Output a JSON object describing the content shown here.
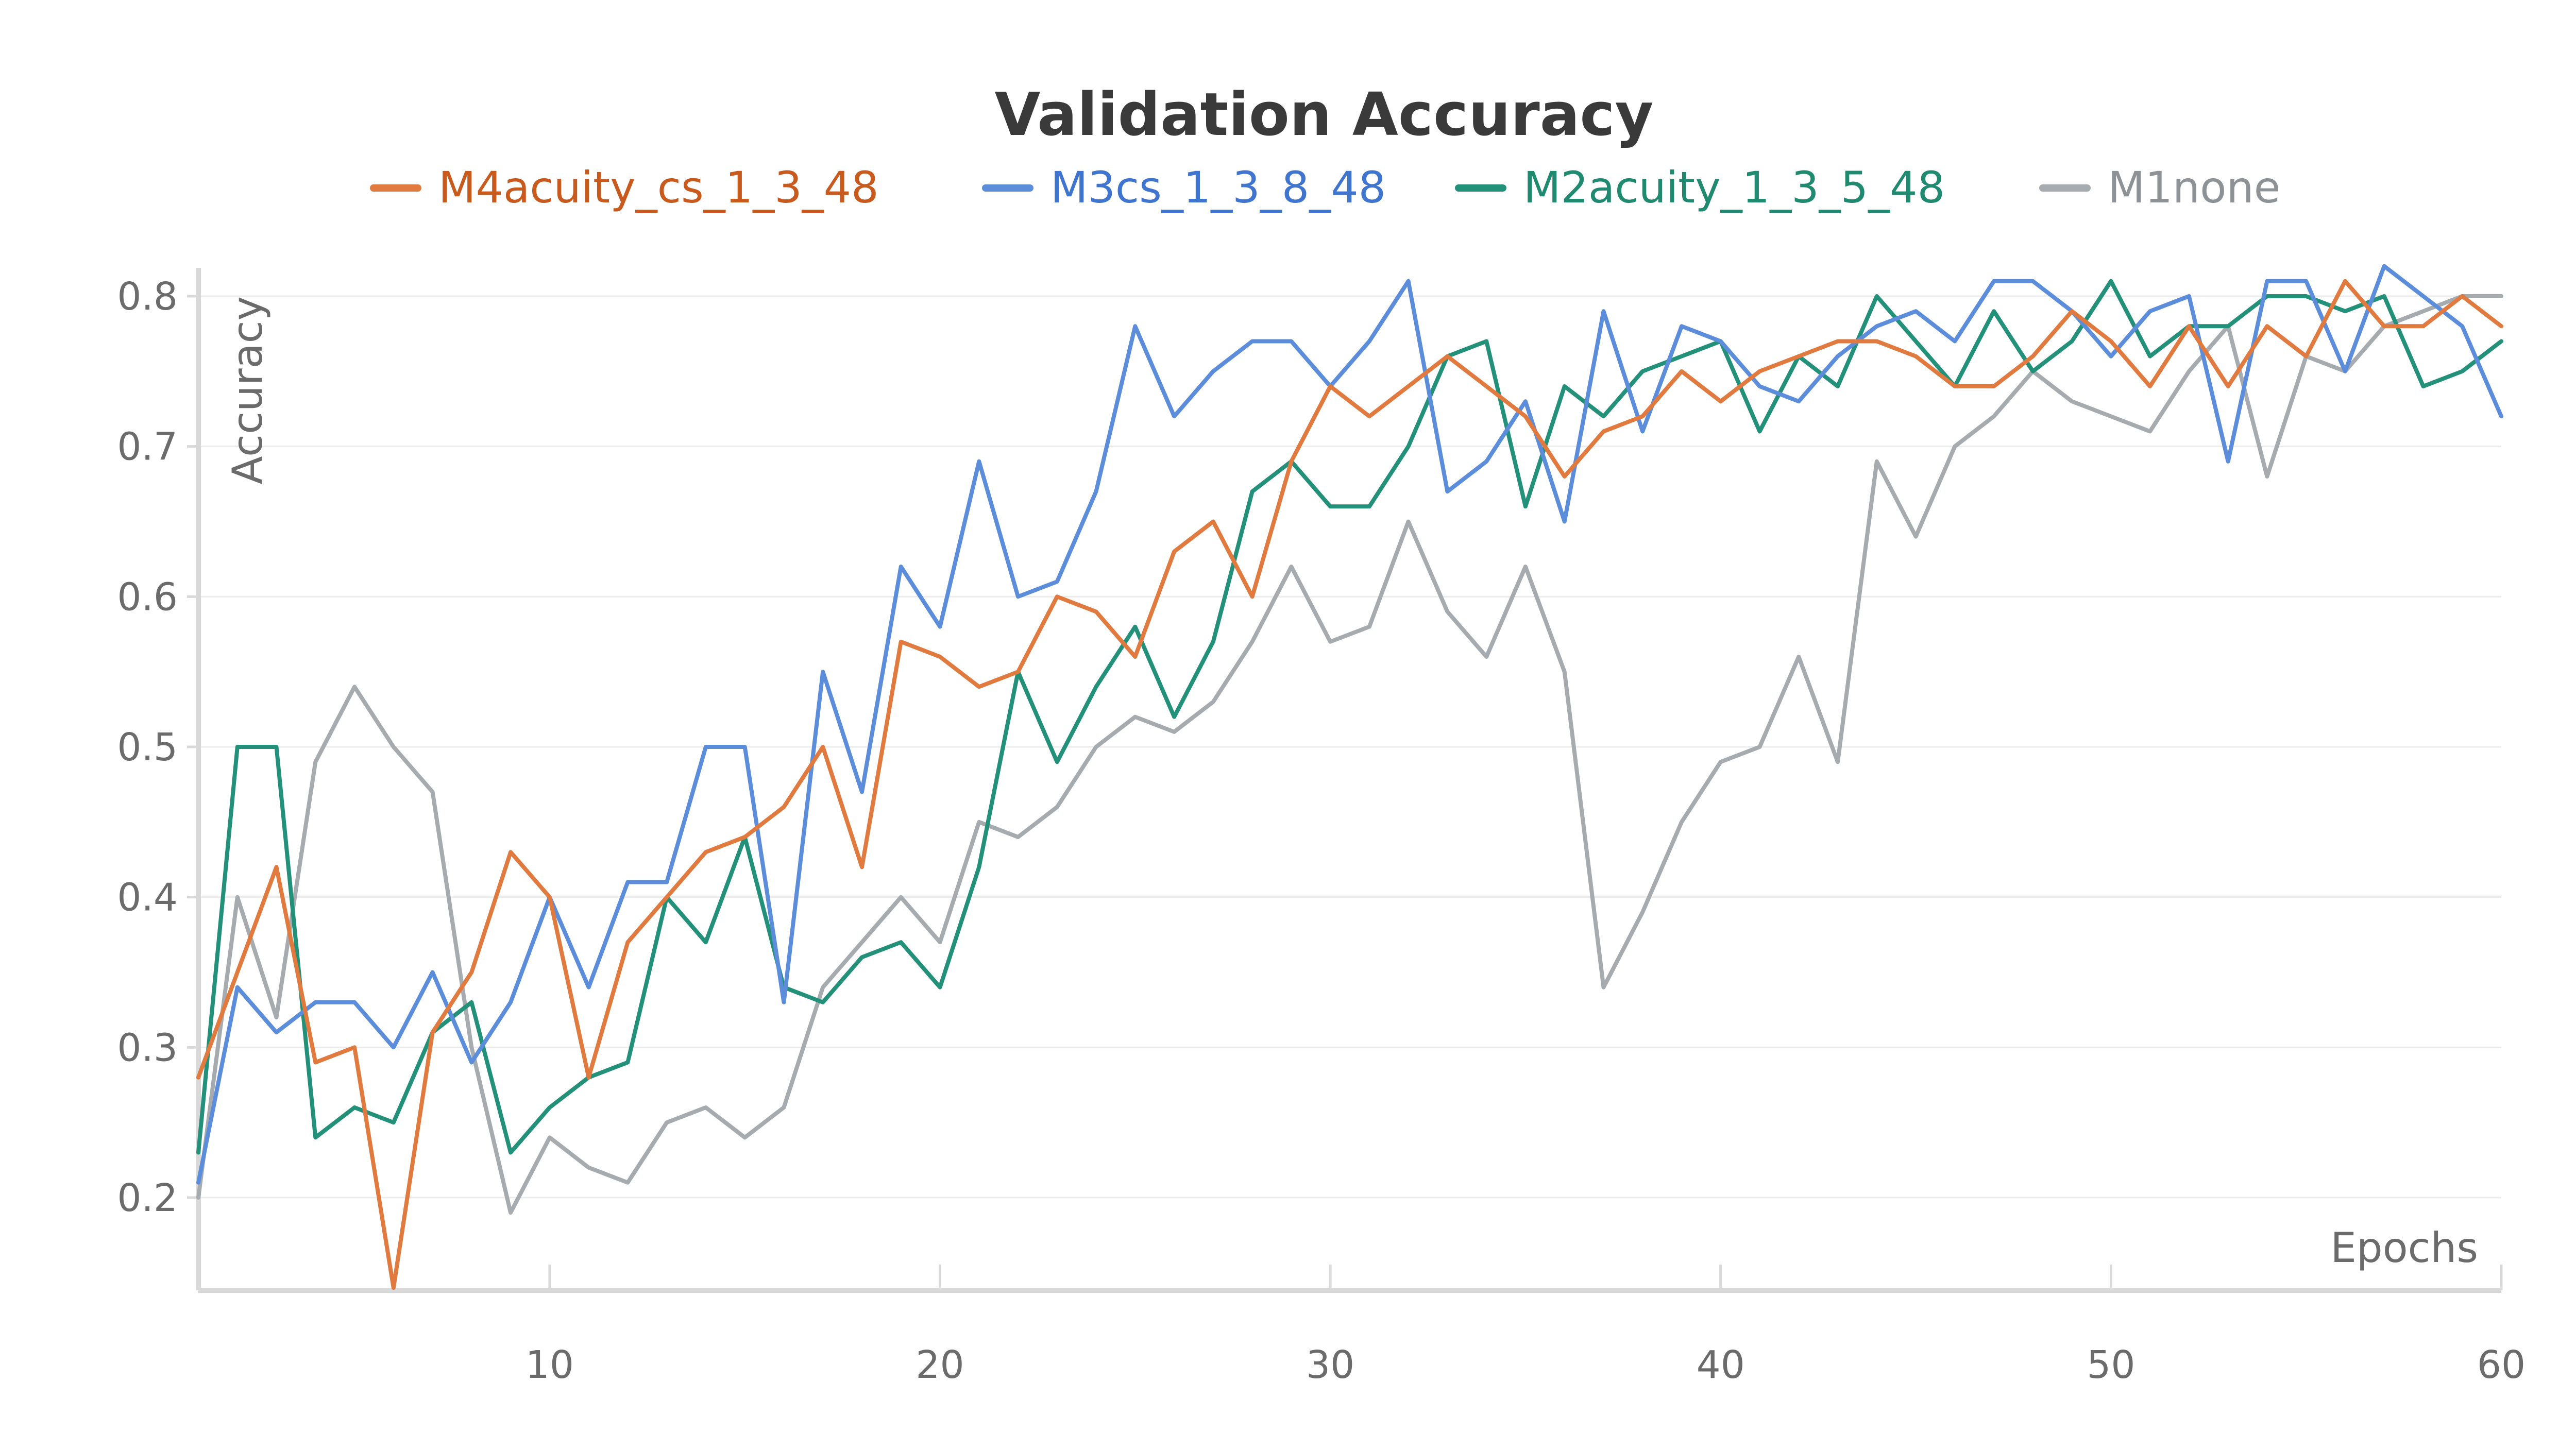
{
  "chart_data": {
    "type": "line",
    "title": "Validation Accuracy",
    "xlabel": "Epochs",
    "ylabel": "Accuracy",
    "xlim": [
      1,
      60
    ],
    "ylim": [
      0.14,
      0.82
    ],
    "xticks": [
      10,
      20,
      30,
      40,
      50,
      60
    ],
    "yticks": [
      0.2,
      0.3,
      0.4,
      0.5,
      0.6,
      0.7,
      0.8
    ],
    "ytick_labels": [
      "0.2",
      "0.3",
      "0.4",
      "0.5",
      "0.6",
      "0.7",
      "0.8"
    ],
    "grid": true,
    "legend_position": "top",
    "x": [
      1,
      2,
      3,
      4,
      5,
      6,
      7,
      8,
      9,
      10,
      11,
      12,
      13,
      14,
      15,
      16,
      17,
      18,
      19,
      20,
      21,
      22,
      23,
      24,
      25,
      26,
      27,
      28,
      29,
      30,
      31,
      32,
      33,
      34,
      35,
      36,
      37,
      38,
      39,
      40,
      41,
      42,
      43,
      44,
      45,
      46,
      47,
      48,
      49,
      50,
      51,
      52,
      53,
      54,
      55,
      56,
      57,
      58,
      59,
      60
    ],
    "series": [
      {
        "name": "M4acuity_cs_1_3_48",
        "color": "#e07a3f",
        "text_color": "#c95a1e",
        "values": [
          0.28,
          0.35,
          0.42,
          0.29,
          0.3,
          0.14,
          0.31,
          0.35,
          0.43,
          0.4,
          0.28,
          0.37,
          0.4,
          0.43,
          0.44,
          0.46,
          0.5,
          0.42,
          0.57,
          0.56,
          0.54,
          0.55,
          0.6,
          0.59,
          0.56,
          0.63,
          0.65,
          0.6,
          0.69,
          0.74,
          0.72,
          0.74,
          0.76,
          0.74,
          0.72,
          0.68,
          0.71,
          0.72,
          0.75,
          0.73,
          0.75,
          0.76,
          0.77,
          0.77,
          0.76,
          0.74,
          0.74,
          0.76,
          0.79,
          0.77,
          0.74,
          0.78,
          0.74,
          0.78,
          0.76,
          0.81,
          0.78,
          0.78,
          0.8,
          0.78
        ]
      },
      {
        "name": "M3cs_1_3_8_48",
        "color": "#5b8ddb",
        "text_color": "#3f75cf",
        "values": [
          0.21,
          0.34,
          0.31,
          0.33,
          0.33,
          0.3,
          0.35,
          0.29,
          0.33,
          0.4,
          0.34,
          0.41,
          0.41,
          0.5,
          0.5,
          0.33,
          0.55,
          0.47,
          0.62,
          0.58,
          0.69,
          0.6,
          0.61,
          0.67,
          0.78,
          0.72,
          0.75,
          0.77,
          0.77,
          0.74,
          0.77,
          0.81,
          0.67,
          0.69,
          0.73,
          0.65,
          0.79,
          0.71,
          0.78,
          0.77,
          0.74,
          0.73,
          0.76,
          0.78,
          0.79,
          0.77,
          0.81,
          0.81,
          0.79,
          0.76,
          0.79,
          0.8,
          0.69,
          0.81,
          0.81,
          0.75,
          0.82,
          0.8,
          0.78,
          0.72
        ]
      },
      {
        "name": "M2acuity_1_3_5_48",
        "color": "#239179",
        "text_color": "#1f8a70",
        "values": [
          0.23,
          0.5,
          0.5,
          0.24,
          0.26,
          0.25,
          0.31,
          0.33,
          0.23,
          0.26,
          0.28,
          0.29,
          0.4,
          0.37,
          0.44,
          0.34,
          0.33,
          0.36,
          0.37,
          0.34,
          0.42,
          0.55,
          0.49,
          0.54,
          0.58,
          0.52,
          0.57,
          0.67,
          0.69,
          0.66,
          0.66,
          0.7,
          0.76,
          0.77,
          0.66,
          0.74,
          0.72,
          0.75,
          0.76,
          0.77,
          0.71,
          0.76,
          0.74,
          0.8,
          0.77,
          0.74,
          0.79,
          0.75,
          0.77,
          0.81,
          0.76,
          0.78,
          0.78,
          0.8,
          0.8,
          0.79,
          0.8,
          0.74,
          0.75,
          0.77
        ]
      },
      {
        "name": "M1none",
        "color": "#a6abb0",
        "text_color": "#8d9297",
        "values": [
          0.2,
          0.4,
          0.32,
          0.49,
          0.54,
          0.5,
          0.47,
          0.3,
          0.19,
          0.24,
          0.22,
          0.21,
          0.25,
          0.26,
          0.24,
          0.26,
          0.34,
          0.37,
          0.4,
          0.37,
          0.45,
          0.44,
          0.46,
          0.5,
          0.52,
          0.51,
          0.53,
          0.57,
          0.62,
          0.57,
          0.58,
          0.65,
          0.59,
          0.56,
          0.62,
          0.55,
          0.34,
          0.39,
          0.45,
          0.49,
          0.5,
          0.56,
          0.49,
          0.69,
          0.64,
          0.7,
          0.72,
          0.75,
          0.73,
          0.72,
          0.71,
          0.75,
          0.78,
          0.68,
          0.76,
          0.75,
          0.78,
          0.79,
          0.8,
          0.8
        ]
      }
    ]
  }
}
